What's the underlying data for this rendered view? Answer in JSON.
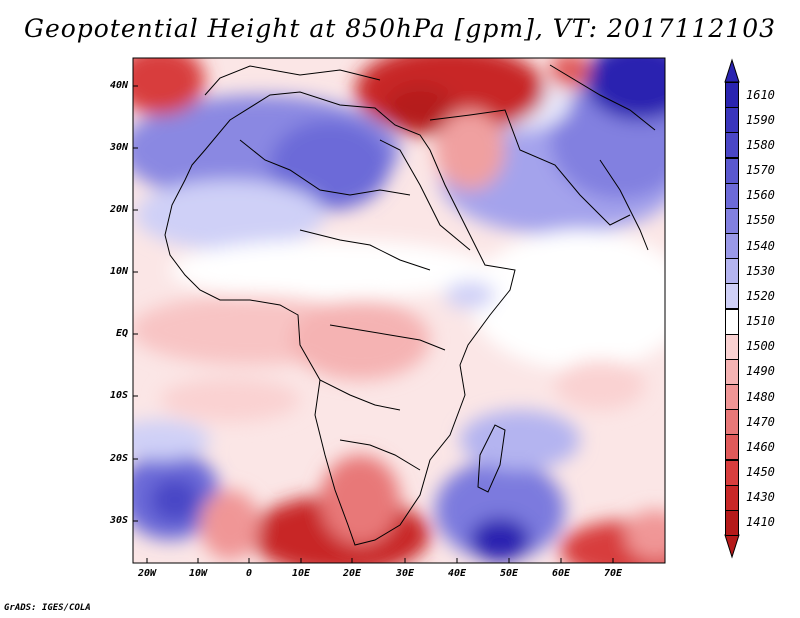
{
  "title": "Geopotential Height at 850hPa [gpm], VT: 2017112103",
  "credit": "GrADS: IGES/COLA",
  "lat_labels": [
    "40N",
    "30N",
    "20N",
    "10N",
    "EQ",
    "10S",
    "20S",
    "30S"
  ],
  "lon_labels": [
    "20W",
    "10W",
    "0",
    "10E",
    "20E",
    "30E",
    "40E",
    "50E",
    "60E",
    "70E"
  ],
  "colorbar": {
    "levels": [
      "1610",
      "1590",
      "1580",
      "1570",
      "1560",
      "1550",
      "1540",
      "1530",
      "1520",
      "1510",
      "1500",
      "1490",
      "1480",
      "1470",
      "1460",
      "1450",
      "1430",
      "1410"
    ],
    "colors": [
      "#2a24b0",
      "#3a35bc",
      "#4a46c6",
      "#5a58cf",
      "#6c6ad8",
      "#8280e0",
      "#9a99e8",
      "#b4b4f0",
      "#cfd0f7",
      "#ffffff",
      "#fad2d2",
      "#f5b3b3",
      "#f09696",
      "#e87878",
      "#e05a5a",
      "#d83e3e",
      "#c82828",
      "#b51a1a"
    ]
  }
}
